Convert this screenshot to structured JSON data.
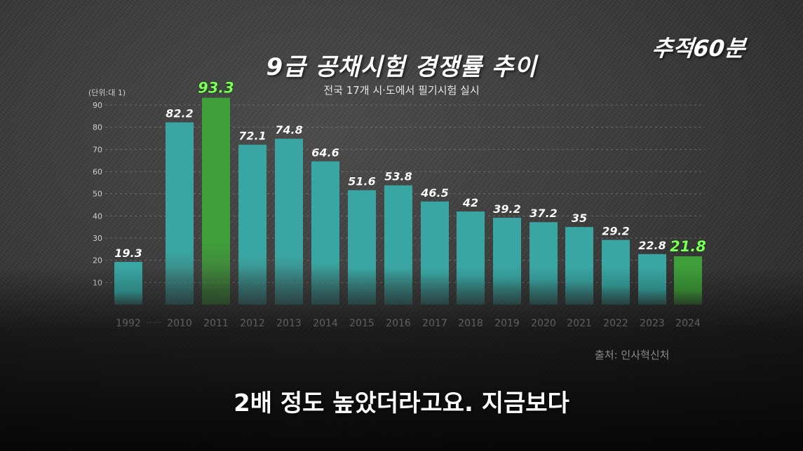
{
  "header": {
    "title": "9급 공채시험 경쟁률 추이",
    "subtitle": "전국 17개 시·도에서 필기시험 실시",
    "logo": "추적60분"
  },
  "footer": {
    "source": "출처: 인사혁신처",
    "caption": "2배 정도 높았더라고요. 지금보다"
  },
  "chart_data": {
    "type": "bar",
    "title": "9급 공채시험 경쟁률 추이",
    "unit_label": "(단위:대 1)",
    "categories": [
      "1992",
      "2010",
      "2011",
      "2012",
      "2013",
      "2014",
      "2015",
      "2016",
      "2017",
      "2018",
      "2019",
      "2020",
      "2021",
      "2022",
      "2023",
      "2024"
    ],
    "values": [
      19.3,
      82.2,
      93.3,
      72.1,
      74.8,
      64.6,
      51.6,
      53.8,
      46.5,
      42,
      39.2,
      37.2,
      35,
      29.2,
      22.8,
      21.8
    ],
    "value_labels": [
      "19.3",
      "82.2",
      "93.3",
      "72.1",
      "74.8",
      "64.6",
      "51.6",
      "53.8",
      "46.5",
      "42",
      "39.2",
      "37.2",
      "35",
      "29.2",
      "22.8",
      "21.8"
    ],
    "highlighted": [
      "2011",
      "2024"
    ],
    "axis_break_after": "1992",
    "axis_break_label": "······",
    "yticks": [
      10,
      20,
      30,
      40,
      50,
      60,
      70,
      80,
      90
    ],
    "ylim": [
      0,
      95
    ],
    "grid": true,
    "colors": {
      "bar": "#3aa6a3",
      "highlight": "#3f9f3a",
      "highlight_label": "#7dff5a",
      "label": "#ffffff",
      "grid": "#8a8a8a"
    }
  }
}
